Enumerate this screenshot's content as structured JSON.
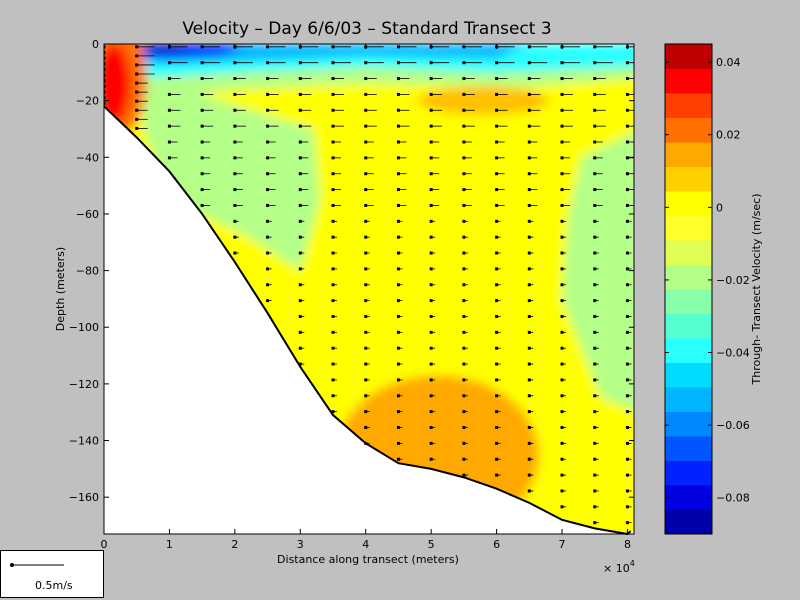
{
  "chart_data": {
    "type": "contour-quiver",
    "title": "Velocity – Day 6/6/03 – Standard Transect 3",
    "xlabel": "Distance along transect (meters)",
    "ylabel": "Depth (meters)",
    "x_multiplier": "× 10",
    "x_multiplier_exp": "4",
    "xlim": [
      0,
      8.1
    ],
    "ylim": [
      -173,
      0
    ],
    "x_ticks": [
      "0",
      "1",
      "2",
      "3",
      "4",
      "5",
      "6",
      "7",
      "8"
    ],
    "y_ticks": [
      "0",
      "−20",
      "−40",
      "−60",
      "−80",
      "−100",
      "−120",
      "−140",
      "−160"
    ],
    "y_tick_values": [
      0,
      -20,
      -40,
      -60,
      -80,
      -100,
      -120,
      -140,
      -160
    ],
    "colorbar": {
      "label": "Through- Transect Velocity (m/sec)",
      "range": [
        -0.09,
        0.045
      ],
      "ticks": [
        "0.04",
        "0.02",
        "0",
        "−0.02",
        "−0.04",
        "−0.06",
        "−0.08"
      ],
      "tick_values": [
        0.04,
        0.02,
        0,
        -0.02,
        -0.04,
        -0.06,
        -0.08
      ],
      "colors": [
        "#0000a8",
        "#0000e0",
        "#0022ff",
        "#0055ff",
        "#0088ff",
        "#00b4ff",
        "#00dcff",
        "#2affff",
        "#55ffd0",
        "#88ffaa",
        "#b4ff88",
        "#e0ff55",
        "#ffff2a",
        "#ffff00",
        "#ffd000",
        "#ffa800",
        "#ff7000",
        "#ff4000",
        "#ff0000",
        "#c00000"
      ]
    },
    "bottom_profile": [
      [
        0,
        -22
      ],
      [
        0.5,
        -33
      ],
      [
        1,
        -45
      ],
      [
        1.5,
        -60
      ],
      [
        2,
        -77
      ],
      [
        2.5,
        -95
      ],
      [
        3,
        -114
      ],
      [
        3.5,
        -131
      ],
      [
        4,
        -141
      ],
      [
        4.5,
        -148
      ],
      [
        5,
        -150
      ],
      [
        5.5,
        -153
      ],
      [
        6,
        -157
      ],
      [
        6.5,
        -162
      ],
      [
        7,
        -168
      ],
      [
        7.5,
        -171
      ],
      [
        8,
        -173
      ],
      [
        8.05,
        -172
      ]
    ],
    "profile_x": [
      0,
      0.5,
      1,
      1.5,
      2,
      2.5,
      3,
      3.5,
      4,
      4.5,
      5,
      5.5,
      6,
      6.5,
      7,
      7.5,
      8
    ]
  },
  "scale_legend": {
    "label": "0.5m/s"
  }
}
